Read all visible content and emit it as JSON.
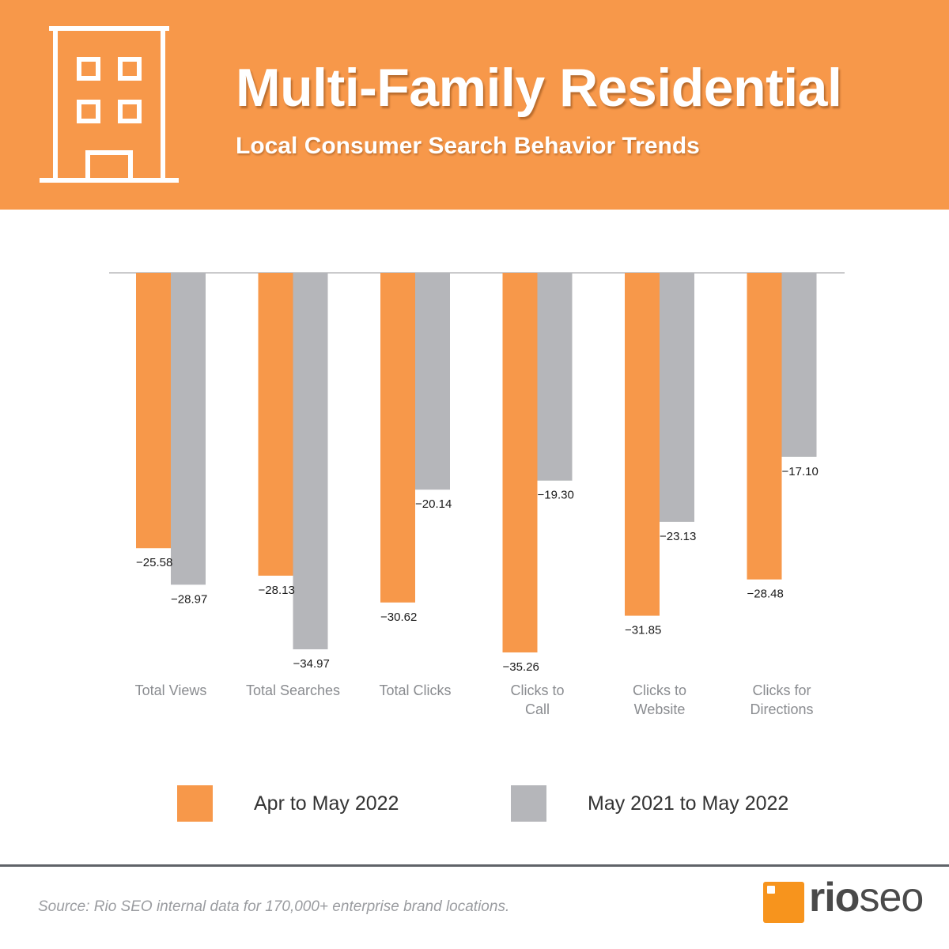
{
  "header": {
    "title": "Multi-Family Residential",
    "subtitle": "Local Consumer Search Behavior Trends",
    "icon": "building-icon"
  },
  "colors": {
    "orange": "#f7984a",
    "gray": "#b5b6ba",
    "header_bg": "#f7984a"
  },
  "chart_data": {
    "type": "bar",
    "title": "Multi-Family Residential",
    "categories": [
      "Total Views",
      "Total Searches",
      "Total Clicks",
      "Clicks to Call",
      "Clicks to Website",
      "Clicks for Directions"
    ],
    "series": [
      {
        "name": "Apr to May 2022",
        "color": "#f7984a",
        "values": [
          -25.58,
          -28.13,
          -30.62,
          -35.26,
          -31.85,
          -28.48
        ],
        "labels": [
          "−25.58",
          "−28.13",
          "−30.62",
          "−35.26",
          "−31.85",
          "−28.48"
        ]
      },
      {
        "name": "May 2021 to May 2022",
        "color": "#b5b6ba",
        "values": [
          -28.97,
          -34.97,
          -20.14,
          -19.3,
          -23.13,
          -17.1
        ],
        "labels": [
          "−28.97",
          "−34.97",
          "−20.14",
          "−19.30",
          "−23.13",
          "−17.10"
        ]
      }
    ],
    "xlabel": "",
    "ylabel": "",
    "ylim": [
      -35.26,
      0
    ],
    "legend": "bottom"
  },
  "legend": {
    "items": [
      {
        "label": "Apr to May 2022",
        "color": "#f7984a"
      },
      {
        "label": "May 2021 to May 2022",
        "color": "#b5b6ba"
      }
    ]
  },
  "footer": {
    "source": "Source: Rio SEO internal data for 170,000+ enterprise brand locations.",
    "logo_bold": "rio",
    "logo_light": "seo"
  }
}
